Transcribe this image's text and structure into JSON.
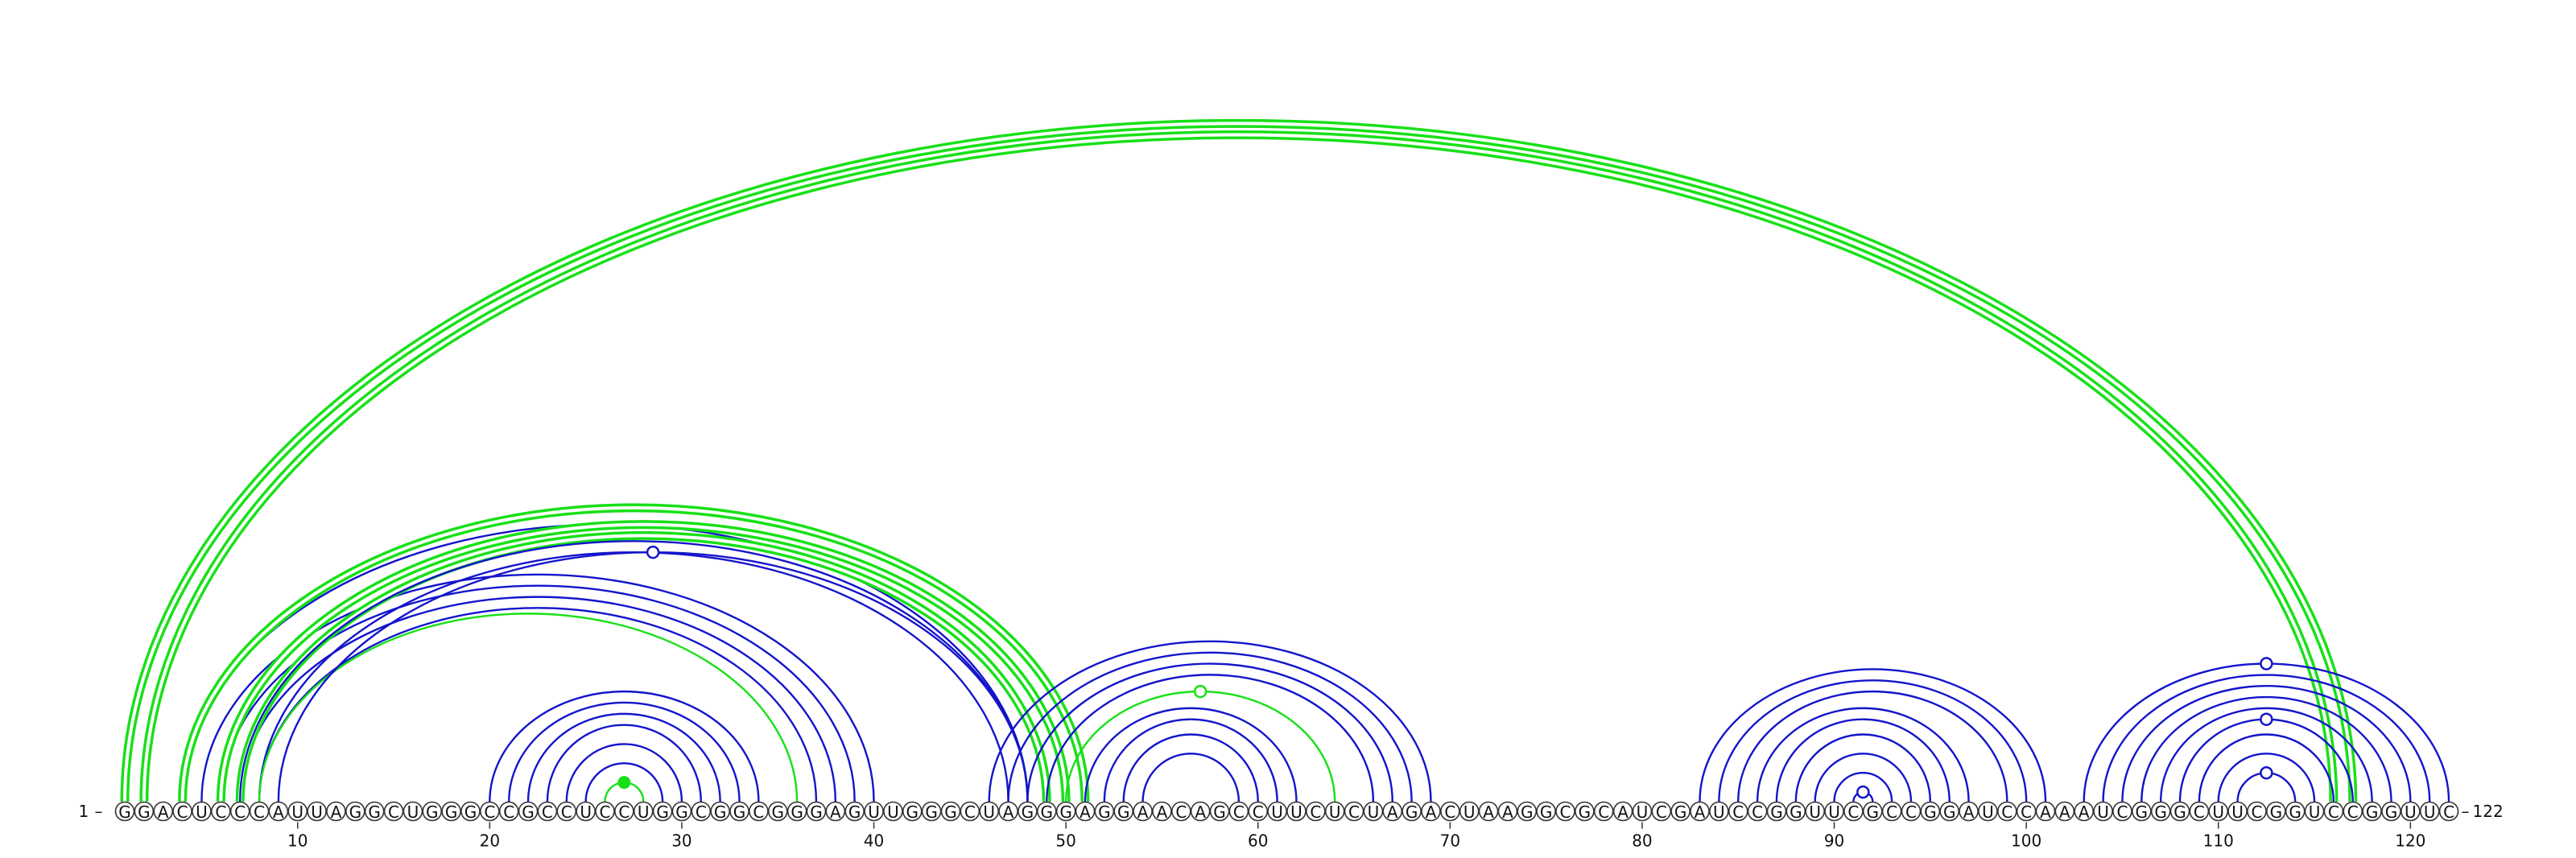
{
  "sequence": "GGACUCCCAUUAGGCUGGGCCGCCUCCUGGCGGCGGGAGUUGGGCUAGGGAGGAACAGCCUUCUCUAGACUAAGGCGCAUCGAUCCGGUUCGCCGGAUCCAAAUCGGGCUUCGGUCCGGUUC",
  "start_label": "1",
  "end_label": "122",
  "ticks": [
    10,
    20,
    30,
    40,
    50,
    60,
    70,
    80,
    90,
    100,
    110,
    120
  ],
  "colors": {
    "green": "#18e018",
    "blue": "#1414cc",
    "outline": "#333333"
  },
  "arcs": [
    {
      "i": 1,
      "j": 117,
      "color": "green",
      "double": true
    },
    {
      "i": 2,
      "j": 116,
      "color": "green",
      "double": true
    },
    {
      "i": 4,
      "j": 48,
      "color": "blue"
    },
    {
      "i": 4,
      "j": 51,
      "color": "green",
      "double": true
    },
    {
      "i": 5,
      "j": 40,
      "color": "blue"
    },
    {
      "i": 6,
      "j": 39,
      "color": "blue"
    },
    {
      "i": 6,
      "j": 50,
      "color": "green",
      "double": true
    },
    {
      "i": 7,
      "j": 38,
      "color": "blue"
    },
    {
      "i": 7,
      "j": 49,
      "color": "green",
      "double": true
    },
    {
      "i": 7,
      "j": 48,
      "color": "blue"
    },
    {
      "i": 8,
      "j": 37,
      "color": "blue"
    },
    {
      "i": 8,
      "j": 47,
      "color": "blue"
    },
    {
      "i": 8,
      "j": 36,
      "color": "green"
    },
    {
      "i": 9,
      "j": 48,
      "color": "blue"
    },
    {
      "i": 20,
      "j": 34,
      "color": "blue"
    },
    {
      "i": 21,
      "j": 33,
      "color": "blue"
    },
    {
      "i": 22,
      "j": 32,
      "color": "blue"
    },
    {
      "i": 23,
      "j": 31,
      "color": "blue"
    },
    {
      "i": 24,
      "j": 30,
      "color": "blue"
    },
    {
      "i": 25,
      "j": 29,
      "color": "blue"
    },
    {
      "i": 26,
      "j": 28,
      "color": "green"
    },
    {
      "i": 46,
      "j": 69,
      "color": "blue"
    },
    {
      "i": 47,
      "j": 68,
      "color": "blue"
    },
    {
      "i": 48,
      "j": 67,
      "color": "blue"
    },
    {
      "i": 49,
      "j": 66,
      "color": "blue"
    },
    {
      "i": 50,
      "j": 64,
      "color": "green"
    },
    {
      "i": 51,
      "j": 62,
      "color": "blue"
    },
    {
      "i": 52,
      "j": 61,
      "color": "blue"
    },
    {
      "i": 53,
      "j": 60,
      "color": "blue"
    },
    {
      "i": 54,
      "j": 59,
      "color": "blue"
    },
    {
      "i": 83,
      "j": 101,
      "color": "blue"
    },
    {
      "i": 84,
      "j": 100,
      "color": "blue"
    },
    {
      "i": 85,
      "j": 99,
      "color": "blue"
    },
    {
      "i": 86,
      "j": 97,
      "color": "blue"
    },
    {
      "i": 87,
      "j": 96,
      "color": "blue"
    },
    {
      "i": 88,
      "j": 95,
      "color": "blue"
    },
    {
      "i": 89,
      "j": 94,
      "color": "blue"
    },
    {
      "i": 90,
      "j": 93,
      "color": "blue"
    },
    {
      "i": 91,
      "j": 92,
      "color": "blue"
    },
    {
      "i": 103,
      "j": 122,
      "color": "blue"
    },
    {
      "i": 104,
      "j": 121,
      "color": "blue"
    },
    {
      "i": 105,
      "j": 120,
      "color": "blue"
    },
    {
      "i": 106,
      "j": 119,
      "color": "blue"
    },
    {
      "i": 107,
      "j": 118,
      "color": "blue"
    },
    {
      "i": 108,
      "j": 117,
      "color": "blue"
    },
    {
      "i": 109,
      "j": 116,
      "color": "blue"
    },
    {
      "i": 110,
      "j": 115,
      "color": "blue"
    },
    {
      "i": 111,
      "j": 114,
      "color": "blue"
    }
  ],
  "markers": [
    {
      "at_arc": 13,
      "style": "open",
      "color": "blue"
    },
    {
      "at_arc": 20,
      "style": "filled",
      "color": "green"
    },
    {
      "at_arc": 25,
      "style": "open",
      "color": "green"
    },
    {
      "at_arc": 38,
      "style": "open",
      "color": "blue"
    },
    {
      "at_arc": 39,
      "style": "open",
      "color": "blue"
    },
    {
      "at_arc": 44,
      "style": "open",
      "color": "blue"
    },
    {
      "at_arc": 47,
      "style": "open",
      "color": "blue"
    }
  ]
}
